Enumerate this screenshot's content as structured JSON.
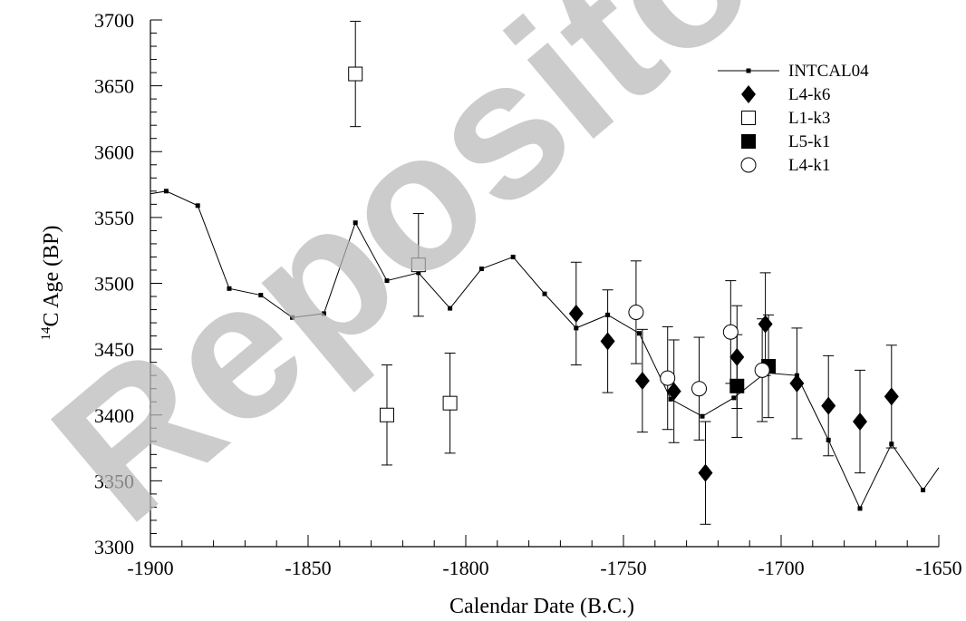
{
  "chart_data": {
    "type": "scatter",
    "xlabel": "Calendar Date (B.C.)",
    "ylabel": "14C Age (BP)",
    "ylabel_sup": "14",
    "ylabel_main": "C Age (BP)",
    "xlim": [
      -1900,
      -1650
    ],
    "ylim": [
      3300,
      3700
    ],
    "x_ticks": [
      -1900,
      -1850,
      -1800,
      -1750,
      -1700,
      -1650
    ],
    "x_tick_labels": [
      "-1900",
      "-1850",
      "-1800",
      "-1750",
      "-1700",
      "-1650"
    ],
    "y_ticks": [
      3300,
      3350,
      3400,
      3450,
      3500,
      3550,
      3600,
      3650,
      3700
    ],
    "y_tick_labels": [
      "3300",
      "3350",
      "3400",
      "3450",
      "3500",
      "3550",
      "3600",
      "3650",
      "3700"
    ],
    "legend_position": "top-right",
    "watermark": "Repository",
    "series": [
      {
        "name": "INTCAL04",
        "marker": "small-square-line",
        "points": [
          [
            -1900,
            3568
          ],
          [
            -1895,
            3570
          ],
          [
            -1885,
            3559
          ],
          [
            -1875,
            3496
          ],
          [
            -1865,
            3491
          ],
          [
            -1855,
            3474
          ],
          [
            -1845,
            3477
          ],
          [
            -1835,
            3546
          ],
          [
            -1825,
            3502
          ],
          [
            -1815,
            3508
          ],
          [
            -1805,
            3481
          ],
          [
            -1795,
            3511
          ],
          [
            -1785,
            3520
          ],
          [
            -1775,
            3492
          ],
          [
            -1765,
            3466
          ],
          [
            -1755,
            3476
          ],
          [
            -1745,
            3462
          ],
          [
            -1735,
            3412
          ],
          [
            -1725,
            3399
          ],
          [
            -1715,
            3413
          ],
          [
            -1705,
            3432
          ],
          [
            -1695,
            3430
          ],
          [
            -1685,
            3381
          ],
          [
            -1675,
            3329
          ],
          [
            -1665,
            3378
          ],
          [
            -1655,
            3343
          ],
          [
            -1650,
            3360
          ]
        ]
      },
      {
        "name": "L4-k6",
        "marker": "filled-diamond",
        "points": [
          {
            "x": -1765,
            "y": 3477,
            "err": 39
          },
          {
            "x": -1755,
            "y": 3456,
            "err": 39
          },
          {
            "x": -1744,
            "y": 3426,
            "err": 39
          },
          {
            "x": -1734,
            "y": 3418,
            "err": 39
          },
          {
            "x": -1724,
            "y": 3356,
            "err": 39
          },
          {
            "x": -1714,
            "y": 3444,
            "err": 39
          },
          {
            "x": -1705,
            "y": 3469,
            "err": 39
          },
          {
            "x": -1695,
            "y": 3424,
            "err": 42
          },
          {
            "x": -1685,
            "y": 3407,
            "err": 38
          },
          {
            "x": -1675,
            "y": 3395,
            "err": 39
          },
          {
            "x": -1665,
            "y": 3414,
            "err": 39
          }
        ]
      },
      {
        "name": "L1-k3",
        "marker": "open-square",
        "points": [
          {
            "x": -1835,
            "y": 3659,
            "err": 40
          },
          {
            "x": -1825,
            "y": 3400,
            "err": 38
          },
          {
            "x": -1815,
            "y": 3514,
            "err": 39
          },
          {
            "x": -1805,
            "y": 3409,
            "err": 38
          }
        ]
      },
      {
        "name": "L5-k1",
        "marker": "filled-square",
        "points": [
          {
            "x": -1714,
            "y": 3422,
            "err": 39
          },
          {
            "x": -1704,
            "y": 3437,
            "err": 39
          }
        ]
      },
      {
        "name": "L4-k1",
        "marker": "open-circle",
        "points": [
          {
            "x": -1746,
            "y": 3478,
            "err": 39
          },
          {
            "x": -1736,
            "y": 3428,
            "err": 39
          },
          {
            "x": -1726,
            "y": 3420,
            "err": 39
          },
          {
            "x": -1716,
            "y": 3463,
            "err": 39
          },
          {
            "x": -1706,
            "y": 3434,
            "err": 39
          }
        ]
      }
    ]
  }
}
